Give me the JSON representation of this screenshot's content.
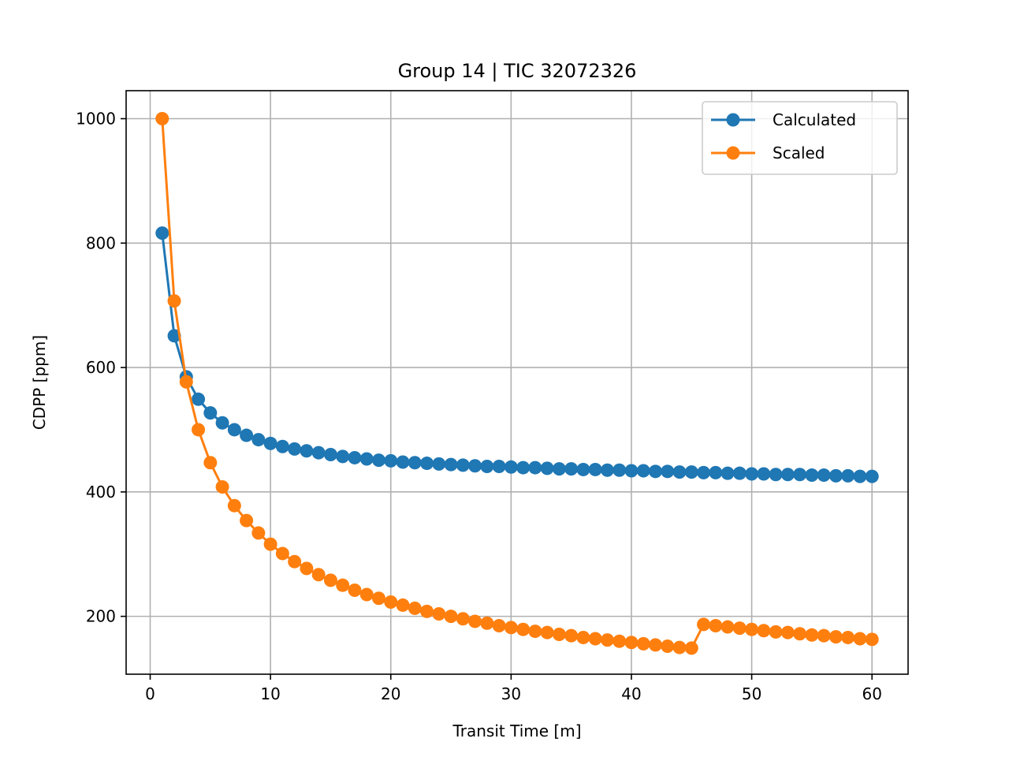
{
  "chart_data": {
    "type": "line",
    "title": "Group 14 | TIC 32072326",
    "xlabel": "Transit Time [m]",
    "ylabel": "CDPP [ppm]",
    "xlim": [
      -2,
      63
    ],
    "ylim": [
      107,
      1045
    ],
    "xticks": [
      0,
      10,
      20,
      30,
      40,
      50,
      60
    ],
    "yticks": [
      200,
      400,
      600,
      800,
      1000
    ],
    "grid": true,
    "legend_position": "top-right",
    "x": [
      1,
      2,
      3,
      4,
      5,
      6,
      7,
      8,
      9,
      10,
      11,
      12,
      13,
      14,
      15,
      16,
      17,
      18,
      19,
      20,
      21,
      22,
      23,
      24,
      25,
      26,
      27,
      28,
      29,
      30,
      31,
      32,
      33,
      34,
      35,
      36,
      37,
      38,
      39,
      40,
      41,
      42,
      43,
      44,
      45,
      46,
      47,
      48,
      49,
      50,
      51,
      52,
      53,
      54,
      55,
      56,
      57,
      58,
      59,
      60
    ],
    "series": [
      {
        "name": "Calculated",
        "color": "#1f77b4",
        "values": [
          816,
          651,
          585,
          549,
          527,
          511,
          500,
          491,
          484,
          478,
          473,
          469,
          466,
          463,
          460,
          457,
          455,
          453,
          451,
          450,
          448,
          447,
          446,
          445,
          444,
          443,
          442,
          441,
          441,
          440,
          439,
          439,
          438,
          437,
          437,
          436,
          436,
          435,
          435,
          434,
          434,
          433,
          433,
          432,
          432,
          431,
          431,
          430,
          430,
          429,
          429,
          428,
          428,
          428,
          427,
          427,
          426,
          426,
          425,
          425
        ]
      },
      {
        "name": "Scaled",
        "color": "#ff7f0e",
        "values": [
          1000,
          707,
          577,
          500,
          447,
          408,
          378,
          354,
          334,
          316,
          301,
          288,
          277,
          267,
          258,
          250,
          242,
          235,
          229,
          223,
          218,
          213,
          208,
          204,
          200,
          196,
          192,
          189,
          185,
          182,
          179,
          176,
          174,
          171,
          169,
          166,
          164,
          162,
          160,
          158,
          156,
          154,
          152,
          150,
          149,
          187,
          185,
          183,
          181,
          179,
          177,
          175,
          174,
          172,
          170,
          169,
          167,
          166,
          164,
          163
        ]
      }
    ]
  }
}
